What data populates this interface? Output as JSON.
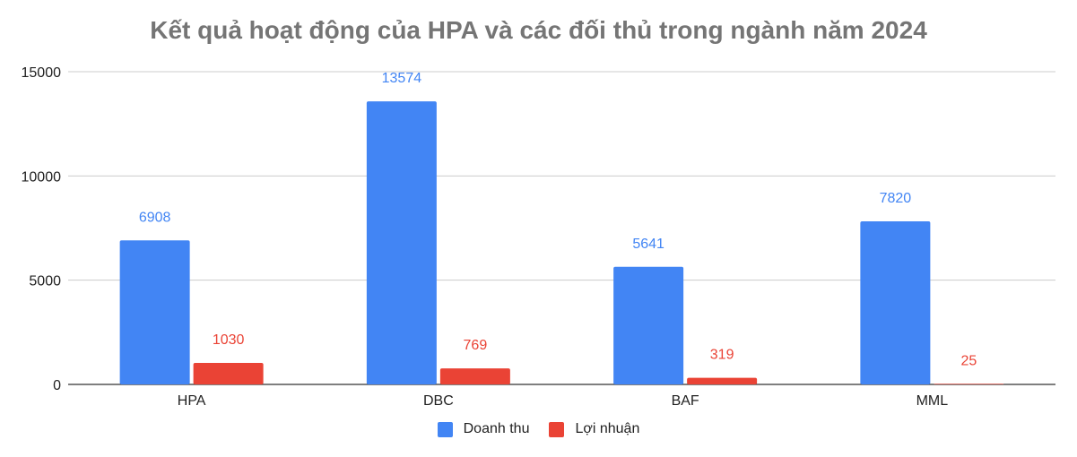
{
  "chart_data": {
    "type": "bar",
    "title": "Kết quả hoạt động của HPA và các đối thủ trong ngành năm 2024",
    "categories": [
      "HPA",
      "DBC",
      "BAF",
      "MML"
    ],
    "series": [
      {
        "name": "Doanh thu",
        "values": [
          6908,
          13574,
          5641,
          7820
        ],
        "color": "#4285f4"
      },
      {
        "name": "Lợi nhuận",
        "values": [
          1030,
          769,
          319,
          25
        ],
        "color": "#ea4335"
      }
    ],
    "yticks": [
      0,
      5000,
      10000,
      15000
    ],
    "ylim": [
      0,
      15000
    ],
    "xlabel": "",
    "ylabel": "",
    "grid": true,
    "legend_position": "bottom"
  }
}
